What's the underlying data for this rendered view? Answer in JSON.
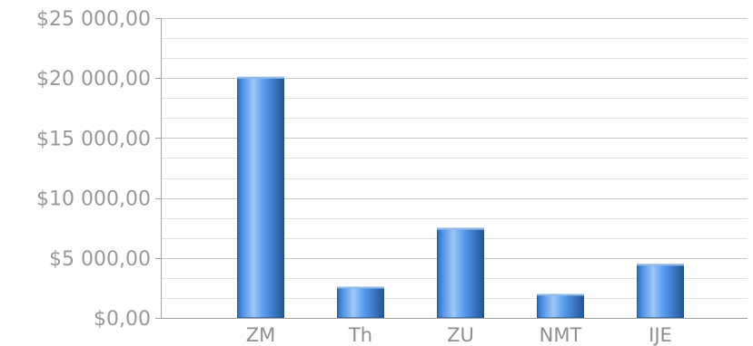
{
  "chart_data": {
    "type": "bar",
    "title": "",
    "xlabel": "",
    "ylabel": "",
    "categories": [
      "ZM",
      "Th",
      "ZU",
      "NMT",
      "IJE"
    ],
    "values": [
      20100,
      2600,
      7500,
      2000,
      4500
    ],
    "ylim": [
      0,
      25000
    ],
    "major_ticks": [
      0,
      5000,
      10000,
      15000,
      20000,
      25000
    ],
    "tick_labels": [
      "$0,00",
      "$5 000,00",
      "$10 000,00",
      "$15 000,00",
      "$20 000,00",
      "$25 000,00"
    ],
    "minor_tick_step": 1666.67,
    "grid": true,
    "legend": "none",
    "colors": {
      "bar_light": "#b6d6fb",
      "bar_mid": "#5b9ef0",
      "bar_dark": "#2b5f9e",
      "bar_edge": "#23528a",
      "grid_major": "#c8c8c8",
      "grid_minor": "#e2e2e2",
      "axis": "#a0a0a0"
    }
  }
}
